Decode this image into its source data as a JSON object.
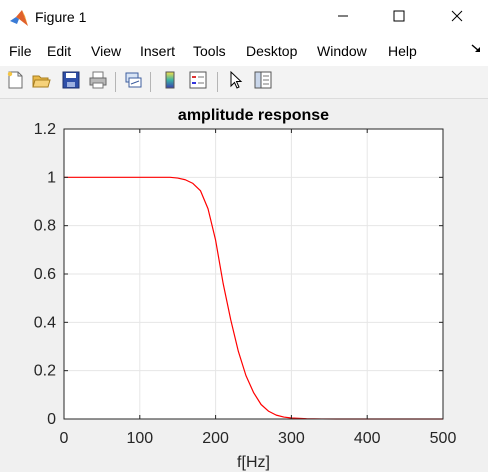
{
  "window": {
    "title": "Figure 1",
    "icon": "matlab-icon",
    "controls": [
      "minimize-icon",
      "maximize-icon",
      "close-icon"
    ]
  },
  "menu": {
    "items": [
      {
        "label": "File"
      },
      {
        "label": "Edit"
      },
      {
        "label": "View"
      },
      {
        "label": "Insert"
      },
      {
        "label": "Tools"
      },
      {
        "label": "Desktop"
      },
      {
        "label": "Window"
      },
      {
        "label": "Help"
      }
    ],
    "expand_icon": "dock-arrow-icon"
  },
  "toolbar": {
    "tools": [
      "new-figure-icon",
      "open-file-icon",
      "save-icon",
      "print-icon",
      "link-plot-icon",
      "colorbar-icon",
      "legend-icon",
      "pointer-icon",
      "property-inspector-icon"
    ]
  },
  "colors": {
    "line": "#ff0000",
    "axes_bg": "#ffffff",
    "grid": "#e6e6e6",
    "figure_bg": "#f0f0f0"
  },
  "chart_data": {
    "type": "line",
    "title": "amplitude response",
    "xlabel": "f[Hz]",
    "ylabel": "",
    "xlim": [
      0,
      500
    ],
    "ylim": [
      0,
      1.2
    ],
    "xticks": [
      0,
      100,
      200,
      300,
      400,
      500
    ],
    "yticks": [
      0,
      0.2,
      0.4,
      0.6,
      0.8,
      1,
      1.2
    ],
    "xtick_labels": [
      "0",
      "100",
      "200",
      "300",
      "400",
      "500"
    ],
    "ytick_labels": [
      "0",
      "0.2",
      "0.4",
      "0.6",
      "0.8",
      "1",
      "1.2"
    ],
    "grid": true,
    "series": [
      {
        "color": "#ff0000",
        "x": [
          0,
          50,
          100,
          140,
          150,
          160,
          170,
          180,
          190,
          200,
          205,
          210,
          220,
          230,
          240,
          250,
          260,
          270,
          280,
          290,
          300,
          320,
          340,
          360,
          400,
          450,
          500
        ],
        "y": [
          1,
          1,
          1,
          1,
          0.997,
          0.99,
          0.975,
          0.945,
          0.87,
          0.74,
          0.65,
          0.56,
          0.41,
          0.28,
          0.18,
          0.11,
          0.06,
          0.032,
          0.016,
          0.008,
          0.004,
          0.001,
          0.0003,
          0,
          0,
          0,
          0
        ]
      }
    ]
  }
}
